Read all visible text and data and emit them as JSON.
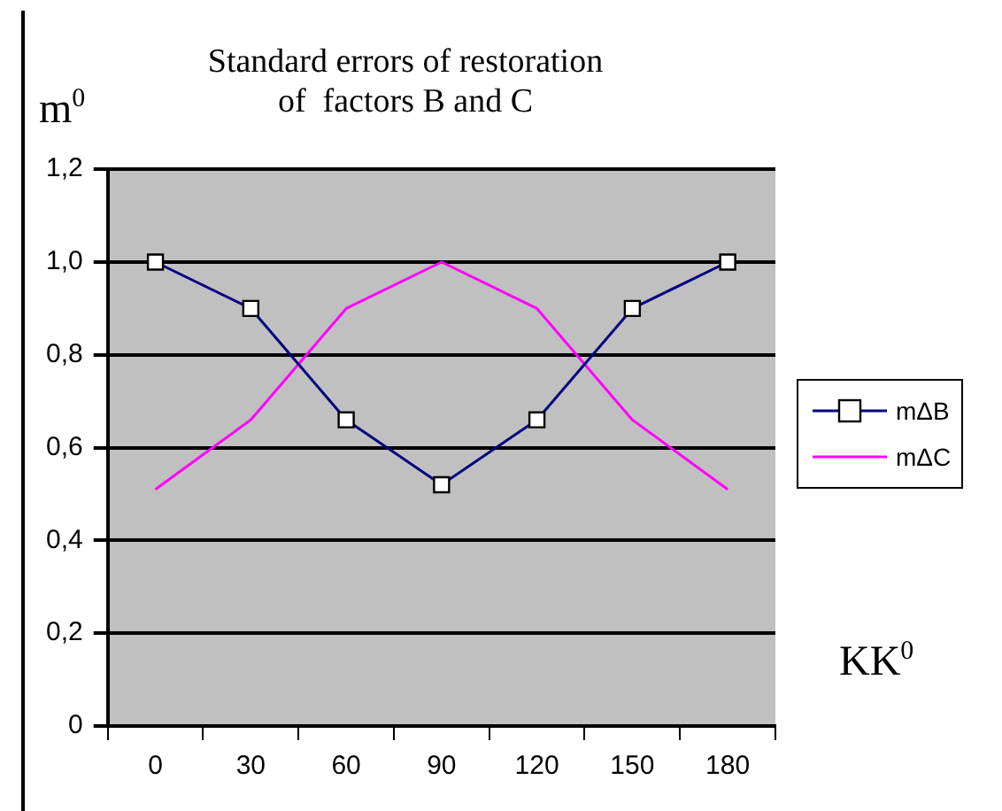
{
  "chart_data": {
    "type": "line",
    "title": "Standard errors of restoration\nof  factors B and C",
    "ylabel": "m$^{0}$",
    "xlabel": "KK$^{0}$",
    "categories": [
      "0",
      "30",
      "60",
      "90",
      "120",
      "150",
      "180"
    ],
    "series": [
      {
        "name": "mΔB",
        "color": "#000080",
        "marker": "square",
        "values": [
          1.0,
          0.9,
          0.66,
          0.52,
          0.66,
          0.9,
          1.0
        ]
      },
      {
        "name": "mΔC",
        "color": "#ff00ff",
        "marker": "none",
        "values": [
          0.51,
          0.66,
          0.9,
          1.0,
          0.9,
          0.66,
          0.51
        ]
      }
    ],
    "ylim": [
      0,
      1.2
    ],
    "yticks": [
      0,
      {
        "value": 0.2,
        "label": "0,2"
      },
      {
        "value": 0.4,
        "label": "0,4"
      },
      {
        "value": 0.6,
        "label": "0,6"
      },
      {
        "value": 0.8,
        "label": "0,8"
      },
      {
        "value": 1.0,
        "label": "1,0"
      },
      {
        "value": 1.2,
        "label": "1,2"
      }
    ],
    "grid": "y",
    "legend": "right"
  }
}
